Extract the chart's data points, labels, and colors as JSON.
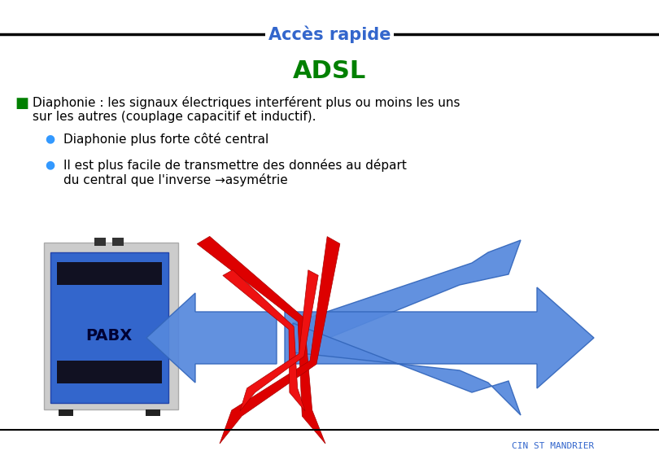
{
  "title": "Accès rapide",
  "subtitle": "ADSL",
  "title_color": "#3366cc",
  "subtitle_color": "#008000",
  "bullet1_head": "Diaphonie : les signaux électriques interférent plus ou moins les uns",
  "bullet1_cont": "sur les autres (couplage capacitif et inductif).",
  "bullet2": "Diaphonie plus forte côté central",
  "bullet3_line1": "Il est plus facile de transmettre des données au départ",
  "bullet3_line2": "du central que l'inverse →asymétrie",
  "footer": "CIN ST MANDRIER",
  "bg_color": "#ffffff",
  "line_color": "#000000",
  "text_color": "#000000",
  "bullet_color": "#008000",
  "sub_bullet_color": "#3399ff",
  "footer_color": "#3366cc",
  "arrow_color": "#5588dd",
  "arrow_edge": "#3366bb",
  "bolt_color": "#dd0000",
  "pabx_blue": "#3366cc",
  "pabx_gray": "#cccccc",
  "pabx_dark": "#111122"
}
